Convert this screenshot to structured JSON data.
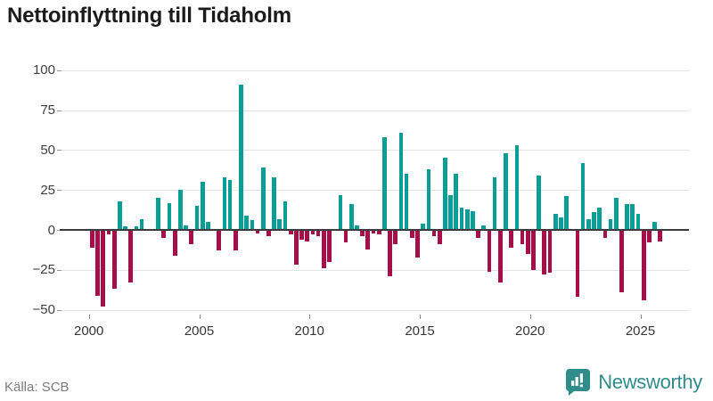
{
  "header": {
    "title": "Nettoinflyttning till Tidaholm"
  },
  "footer": {
    "source": "Källa: SCB",
    "brand": "Newsworthy"
  },
  "icons": {
    "brand_icon": "bar-chart-speech-bubble-icon"
  },
  "chart_data": {
    "type": "bar",
    "title": "Nettoinflyttning till Tidaholm",
    "xlabel": "",
    "ylabel": "",
    "frequency": "quarterly",
    "start_year": 2000,
    "x_tick_labels": [
      "2000",
      "2005",
      "2010",
      "2015",
      "2020",
      "2025"
    ],
    "y_ticks": [
      100,
      75,
      50,
      25,
      0,
      -25,
      -50
    ],
    "y_tick_labels": [
      "100",
      "75",
      "50",
      "25",
      "0",
      "−25",
      "−50"
    ],
    "ylim": [
      -58,
      108
    ],
    "grid": true,
    "positive_color": "#0a9e97",
    "negative_color": "#a60d49",
    "values": [
      -11,
      -41,
      -48,
      -3,
      -37,
      18,
      2,
      -33,
      2,
      7,
      0,
      0,
      20,
      -5,
      17,
      -16,
      25,
      3,
      -9,
      15,
      30,
      5,
      0,
      -13,
      33,
      31,
      -13,
      91,
      9,
      6,
      -2,
      39,
      -4,
      33,
      7,
      18,
      -3,
      -22,
      -6,
      -7,
      -3,
      -4,
      -24,
      -20,
      0,
      22,
      -8,
      16,
      3,
      -4,
      -12,
      -2,
      -3,
      58,
      -29,
      -9,
      61,
      35,
      -5,
      -17,
      4,
      38,
      -4,
      -9,
      45,
      22,
      35,
      14,
      13,
      12,
      -5,
      3,
      -26,
      33,
      -33,
      48,
      -11,
      53,
      -9,
      -15,
      -25,
      34,
      -28,
      -27,
      10,
      8,
      21,
      0,
      -42,
      42,
      7,
      11,
      14,
      -5,
      7,
      20,
      -39,
      16,
      16,
      10,
      -44,
      -8,
      5,
      -7
    ]
  }
}
